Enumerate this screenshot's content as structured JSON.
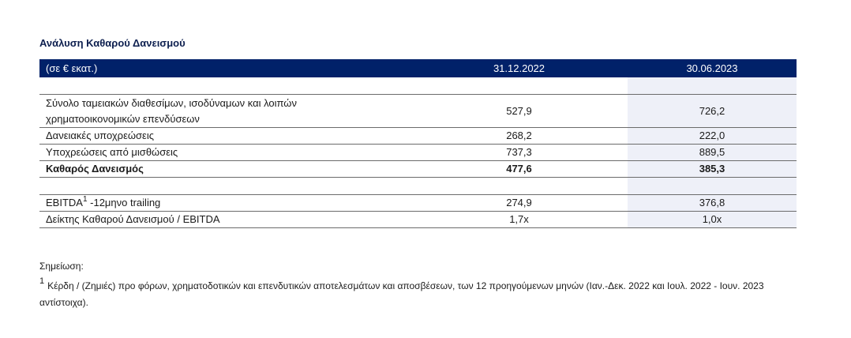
{
  "title": "Ανάλυση Καθαρού Δανεισμού",
  "table": {
    "header": {
      "label": "(σε € εκατ.)",
      "col1": "31.12.2022",
      "col2": "30.06.2023"
    },
    "rows": [
      {
        "label_line1": "Σύνολο ταμειακών διαθεσίμων, ισοδύναμων και λοιπών",
        "label_line2": "χρηματοοικονομικών επενδύσεων",
        "v1": "527,9",
        "v2": "726,2"
      },
      {
        "label": "Δανειακές υποχρεώσεις",
        "v1": "268,2",
        "v2": "222,0"
      },
      {
        "label": "Υποχρεώσεις από μισθώσεις",
        "v1": "737,3",
        "v2": "889,5"
      },
      {
        "label": "Καθαρός Δανεισμός",
        "v1": "477,6",
        "v2": "385,3",
        "bold": true
      },
      {
        "label_prefix": "EBITDA",
        "label_sup": "1",
        "label_suffix": " -12μηνο trailing",
        "v1": "274,9",
        "v2": "376,8"
      },
      {
        "label": "Δείκτης Καθαρού Δανεισμού / EBITDA",
        "v1": "1,7x",
        "v2": "1,0x"
      }
    ]
  },
  "notes": {
    "heading": "Σημείωση:",
    "footnote_mark": "1",
    "footnote_text": "Κέρδη / (Ζημιές) προ φόρων, χρηματοδοτικών και επενδυτικών αποτελεσμάτων και αποσβέσεων, των 12 προηγούμενων μηνών (Ιαν.-Δεκ. 2022 και Ιουλ. 2022 - Ιουν. 2023 αντίστοιχα)."
  },
  "colors": {
    "header_bg": "#012169",
    "highlight_bg": "#eef0f8",
    "title": "#0d1f4f"
  }
}
